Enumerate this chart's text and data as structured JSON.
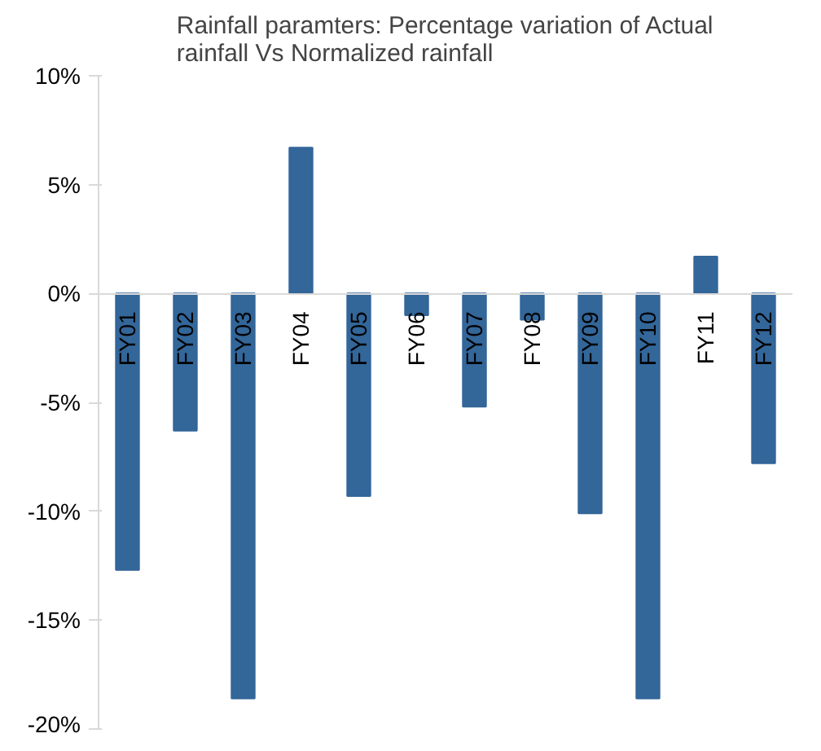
{
  "chart_data": {
    "type": "bar",
    "title": "Rainfall paramters: Percentage variation of Actual\nrainfall Vs Normalized rainfall",
    "categories": [
      "FY01",
      "FY02",
      "FY03",
      "FY04",
      "FY05",
      "FY06",
      "FY07",
      "FY08",
      "FY09",
      "FY10",
      "FY11",
      "FY12"
    ],
    "values": [
      -12.7,
      -6.3,
      -18.6,
      6.7,
      -9.3,
      -1.0,
      -5.2,
      -1.2,
      -10.1,
      -18.6,
      1.7,
      -7.8
    ],
    "color": "#336699",
    "ylim": [
      -20,
      10
    ],
    "yticks": [
      {
        "value": -20,
        "label": "-20%"
      },
      {
        "value": -15,
        "label": "-15%"
      },
      {
        "value": -10,
        "label": "-10%"
      },
      {
        "value": -5,
        "label": "-5%"
      },
      {
        "value": 0,
        "label": "0%"
      },
      {
        "value": 5,
        "label": "5%"
      },
      {
        "value": 10,
        "label": "10%"
      }
    ],
    "grid": false
  }
}
